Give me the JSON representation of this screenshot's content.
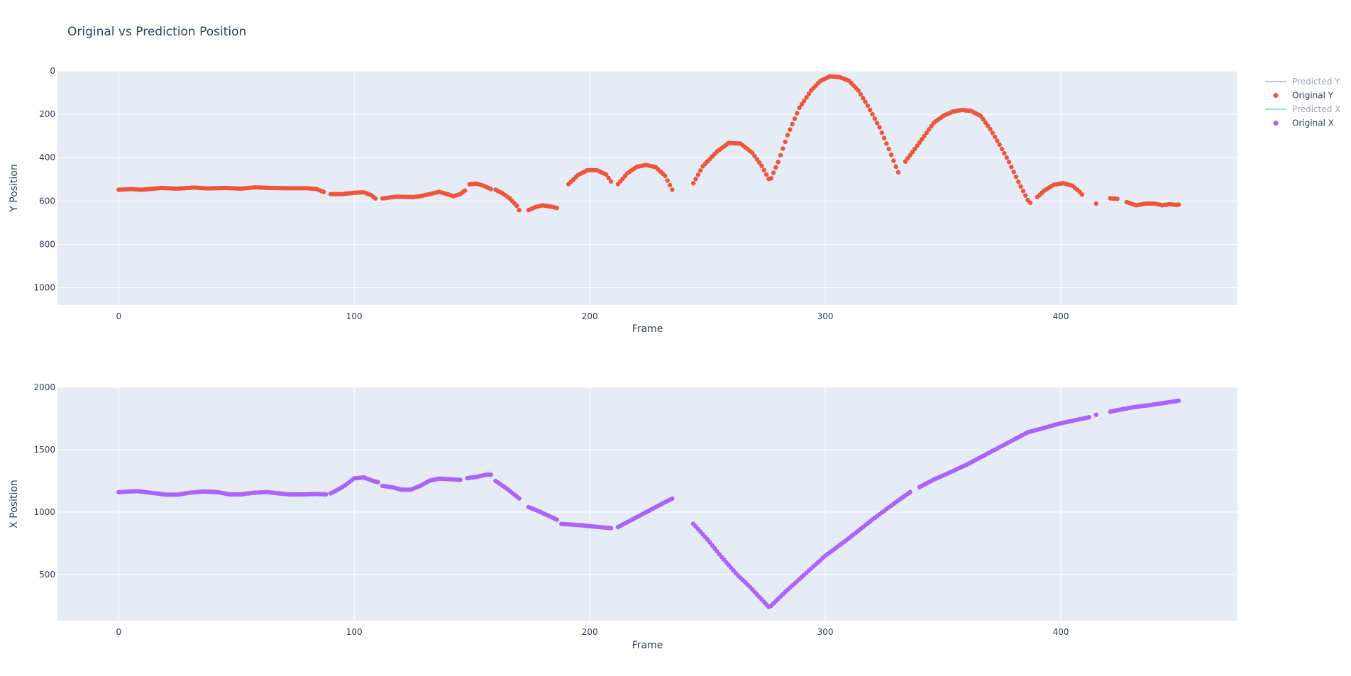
{
  "title": "Original vs Prediction Position",
  "colors": {
    "plot_bg": "#E5ECF6",
    "grid": "#ffffff",
    "original_y": "#EF553B",
    "original_x": "#AB63FA",
    "predicted_y": "#636EFA",
    "predicted_x": "#00CC96"
  },
  "legend": {
    "items": [
      {
        "label": "Predicted Y",
        "kind": "line",
        "color": "#636EFA",
        "faded": true
      },
      {
        "label": "Original Y",
        "kind": "marker",
        "color": "#EF553B",
        "faded": false
      },
      {
        "label": "Predicted X",
        "kind": "line",
        "color": "#00CC96",
        "faded": true
      },
      {
        "label": "Original X",
        "kind": "marker",
        "color": "#AB63FA",
        "faded": false
      }
    ],
    "placement": "top-right"
  },
  "chart_data": [
    {
      "type": "scatter",
      "xlabel": "Frame",
      "ylabel": "Y Position",
      "xlim": [
        -26,
        475
      ],
      "ylim": [
        1080,
        0
      ],
      "y_reversed": true,
      "xticks": [
        0,
        100,
        200,
        300,
        400
      ],
      "yticks": [
        0,
        200,
        400,
        600,
        800,
        1000
      ],
      "grid": true,
      "series": [
        {
          "name": "Original Y",
          "color": "#EF553B",
          "anchors": [
            [
              0,
              548
            ],
            [
              5,
              545
            ],
            [
              10,
              548
            ],
            [
              18,
              540
            ],
            [
              25,
              543
            ],
            [
              32,
              538
            ],
            [
              38,
              542
            ],
            [
              45,
              540
            ],
            [
              52,
              543
            ],
            [
              58,
              537
            ],
            [
              65,
              540
            ],
            [
              72,
              541
            ],
            [
              80,
              541
            ],
            [
              84,
              545
            ],
            [
              87,
              558
            ],
            [
              90,
              568
            ],
            [
              95,
              568
            ],
            [
              100,
              562
            ],
            [
              104,
              560
            ],
            [
              107,
              572
            ],
            [
              109,
              588
            ],
            [
              112,
              588
            ],
            [
              118,
              580
            ],
            [
              125,
              582
            ],
            [
              128,
              578
            ],
            [
              132,
              568
            ],
            [
              136,
              558
            ],
            [
              140,
              570
            ],
            [
              142,
              578
            ],
            [
              145,
              568
            ],
            [
              147,
              552
            ],
            [
              149,
              523
            ],
            [
              152,
              520
            ],
            [
              155,
              530
            ],
            [
              158,
              545
            ],
            [
              160,
              548
            ],
            [
              163,
              565
            ],
            [
              166,
              588
            ],
            [
              169,
              622
            ],
            [
              170,
              642
            ],
            [
              174,
              642
            ],
            [
              177,
              628
            ],
            [
              180,
              620
            ],
            [
              183,
              625
            ],
            [
              186,
              632
            ],
            [
              191,
              522
            ],
            [
              195,
              480
            ],
            [
              199,
              458
            ],
            [
              203,
              458
            ],
            [
              207,
              478
            ],
            [
              209,
              510
            ],
            [
              212,
              522
            ],
            [
              216,
              472
            ],
            [
              220,
              442
            ],
            [
              224,
              434
            ],
            [
              228,
              444
            ],
            [
              232,
              484
            ],
            [
              235,
              548
            ],
            [
              244,
              518
            ],
            [
              248,
              440
            ],
            [
              254,
              372
            ],
            [
              259,
              332
            ],
            [
              264,
              335
            ],
            [
              269,
              378
            ],
            [
              273,
              438
            ],
            [
              276,
              498
            ],
            [
              277,
              495
            ],
            [
              280,
              420
            ],
            [
              284,
              296
            ],
            [
              289,
              170
            ],
            [
              294,
              90
            ],
            [
              298,
              45
            ],
            [
              302,
              25
            ],
            [
              306,
              28
            ],
            [
              310,
              45
            ],
            [
              314,
              90
            ],
            [
              318,
              160
            ],
            [
              323,
              260
            ],
            [
              327,
              360
            ],
            [
              331,
              468
            ],
            [
              334,
              418
            ],
            [
              338,
              360
            ],
            [
              342,
              300
            ],
            [
              346,
              240
            ],
            [
              350,
              208
            ],
            [
              354,
              188
            ],
            [
              358,
              180
            ],
            [
              362,
              185
            ],
            [
              366,
              208
            ],
            [
              370,
              268
            ],
            [
              374,
              340
            ],
            [
              378,
              420
            ],
            [
              382,
              512
            ],
            [
              386,
              596
            ],
            [
              387,
              608
            ],
            [
              390,
              582
            ],
            [
              393,
              552
            ],
            [
              397,
              525
            ],
            [
              401,
              518
            ],
            [
              405,
              530
            ],
            [
              408,
              558
            ],
            [
              409,
              570
            ],
            [
              415,
              612
            ],
            [
              421,
              588
            ],
            [
              424,
              590
            ],
            [
              428,
              605
            ],
            [
              432,
              620
            ],
            [
              436,
              612
            ],
            [
              440,
              612
            ],
            [
              443,
              620
            ],
            [
              446,
              615
            ],
            [
              449,
              618
            ],
            [
              450,
              617
            ]
          ],
          "segments": [
            [
              0,
              87
            ],
            [
              90,
              109
            ],
            [
              112,
              147
            ],
            [
              149,
              158
            ],
            [
              160,
              170
            ],
            [
              174,
              186
            ],
            [
              191,
              209
            ],
            [
              212,
              235
            ],
            [
              244,
              276
            ],
            [
              277,
              331
            ],
            [
              334,
              387
            ],
            [
              390,
              409
            ],
            [
              415,
              415
            ],
            [
              421,
              424
            ],
            [
              428,
              450
            ]
          ]
        }
      ]
    },
    {
      "type": "scatter",
      "xlabel": "Frame",
      "ylabel": "X Position",
      "xlim": [
        -26,
        475
      ],
      "ylim": [
        130,
        2000
      ],
      "xticks": [
        0,
        100,
        200,
        300,
        400
      ],
      "yticks": [
        500,
        1000,
        1500,
        2000
      ],
      "grid": true,
      "series": [
        {
          "name": "Original X",
          "color": "#AB63FA",
          "anchors": [
            [
              0,
              1160
            ],
            [
              8,
              1168
            ],
            [
              15,
              1152
            ],
            [
              20,
              1140
            ],
            [
              25,
              1140
            ],
            [
              30,
              1155
            ],
            [
              36,
              1165
            ],
            [
              42,
              1160
            ],
            [
              47,
              1142
            ],
            [
              52,
              1142
            ],
            [
              57,
              1155
            ],
            [
              63,
              1160
            ],
            [
              68,
              1150
            ],
            [
              72,
              1142
            ],
            [
              78,
              1142
            ],
            [
              84,
              1145
            ],
            [
              88,
              1142
            ],
            [
              90,
              1150
            ],
            [
              95,
              1200
            ],
            [
              100,
              1270
            ],
            [
              104,
              1278
            ],
            [
              108,
              1250
            ],
            [
              110,
              1240
            ],
            [
              112,
              1210
            ],
            [
              116,
              1200
            ],
            [
              120,
              1180
            ],
            [
              124,
              1180
            ],
            [
              128,
              1210
            ],
            [
              132,
              1252
            ],
            [
              136,
              1268
            ],
            [
              142,
              1262
            ],
            [
              145,
              1258
            ],
            [
              148,
              1272
            ],
            [
              152,
              1282
            ],
            [
              156,
              1300
            ],
            [
              158,
              1300
            ],
            [
              160,
              1250
            ],
            [
              165,
              1185
            ],
            [
              170,
              1110
            ],
            [
              174,
              1040
            ],
            [
              178,
              1010
            ],
            [
              182,
              975
            ],
            [
              186,
              940
            ],
            [
              188,
              905
            ],
            [
              196,
              895
            ],
            [
              204,
              880
            ],
            [
              209,
              872
            ],
            [
              212,
              880
            ],
            [
              222,
              980
            ],
            [
              230,
              1060
            ],
            [
              235,
              1108
            ],
            [
              244,
              905
            ],
            [
              250,
              780
            ],
            [
              256,
              640
            ],
            [
              262,
              510
            ],
            [
              268,
              400
            ],
            [
              272,
              320
            ],
            [
              276,
              240
            ],
            [
              277,
              250
            ],
            [
              283,
              360
            ],
            [
              290,
              480
            ],
            [
              300,
              650
            ],
            [
              310,
              790
            ],
            [
              320,
              940
            ],
            [
              330,
              1080
            ],
            [
              336,
              1160
            ],
            [
              340,
              1200
            ],
            [
              346,
              1260
            ],
            [
              352,
              1310
            ],
            [
              360,
              1380
            ],
            [
              368,
              1460
            ],
            [
              374,
              1520
            ],
            [
              380,
              1580
            ],
            [
              386,
              1640
            ],
            [
              392,
              1670
            ],
            [
              400,
              1712
            ],
            [
              410,
              1752
            ],
            [
              412,
              1760
            ],
            [
              415,
              1780
            ],
            [
              421,
              1805
            ],
            [
              425,
              1820
            ],
            [
              430,
              1838
            ],
            [
              438,
              1858
            ],
            [
              445,
              1878
            ],
            [
              450,
              1892
            ]
          ],
          "segments": [
            [
              0,
              88
            ],
            [
              90,
              110
            ],
            [
              112,
              145
            ],
            [
              148,
              158
            ],
            [
              160,
              170
            ],
            [
              174,
              186
            ],
            [
              188,
              209
            ],
            [
              212,
              235
            ],
            [
              244,
              276
            ],
            [
              277,
              336
            ],
            [
              340,
              412
            ],
            [
              415,
              415
            ],
            [
              421,
              450
            ]
          ]
        }
      ]
    }
  ]
}
